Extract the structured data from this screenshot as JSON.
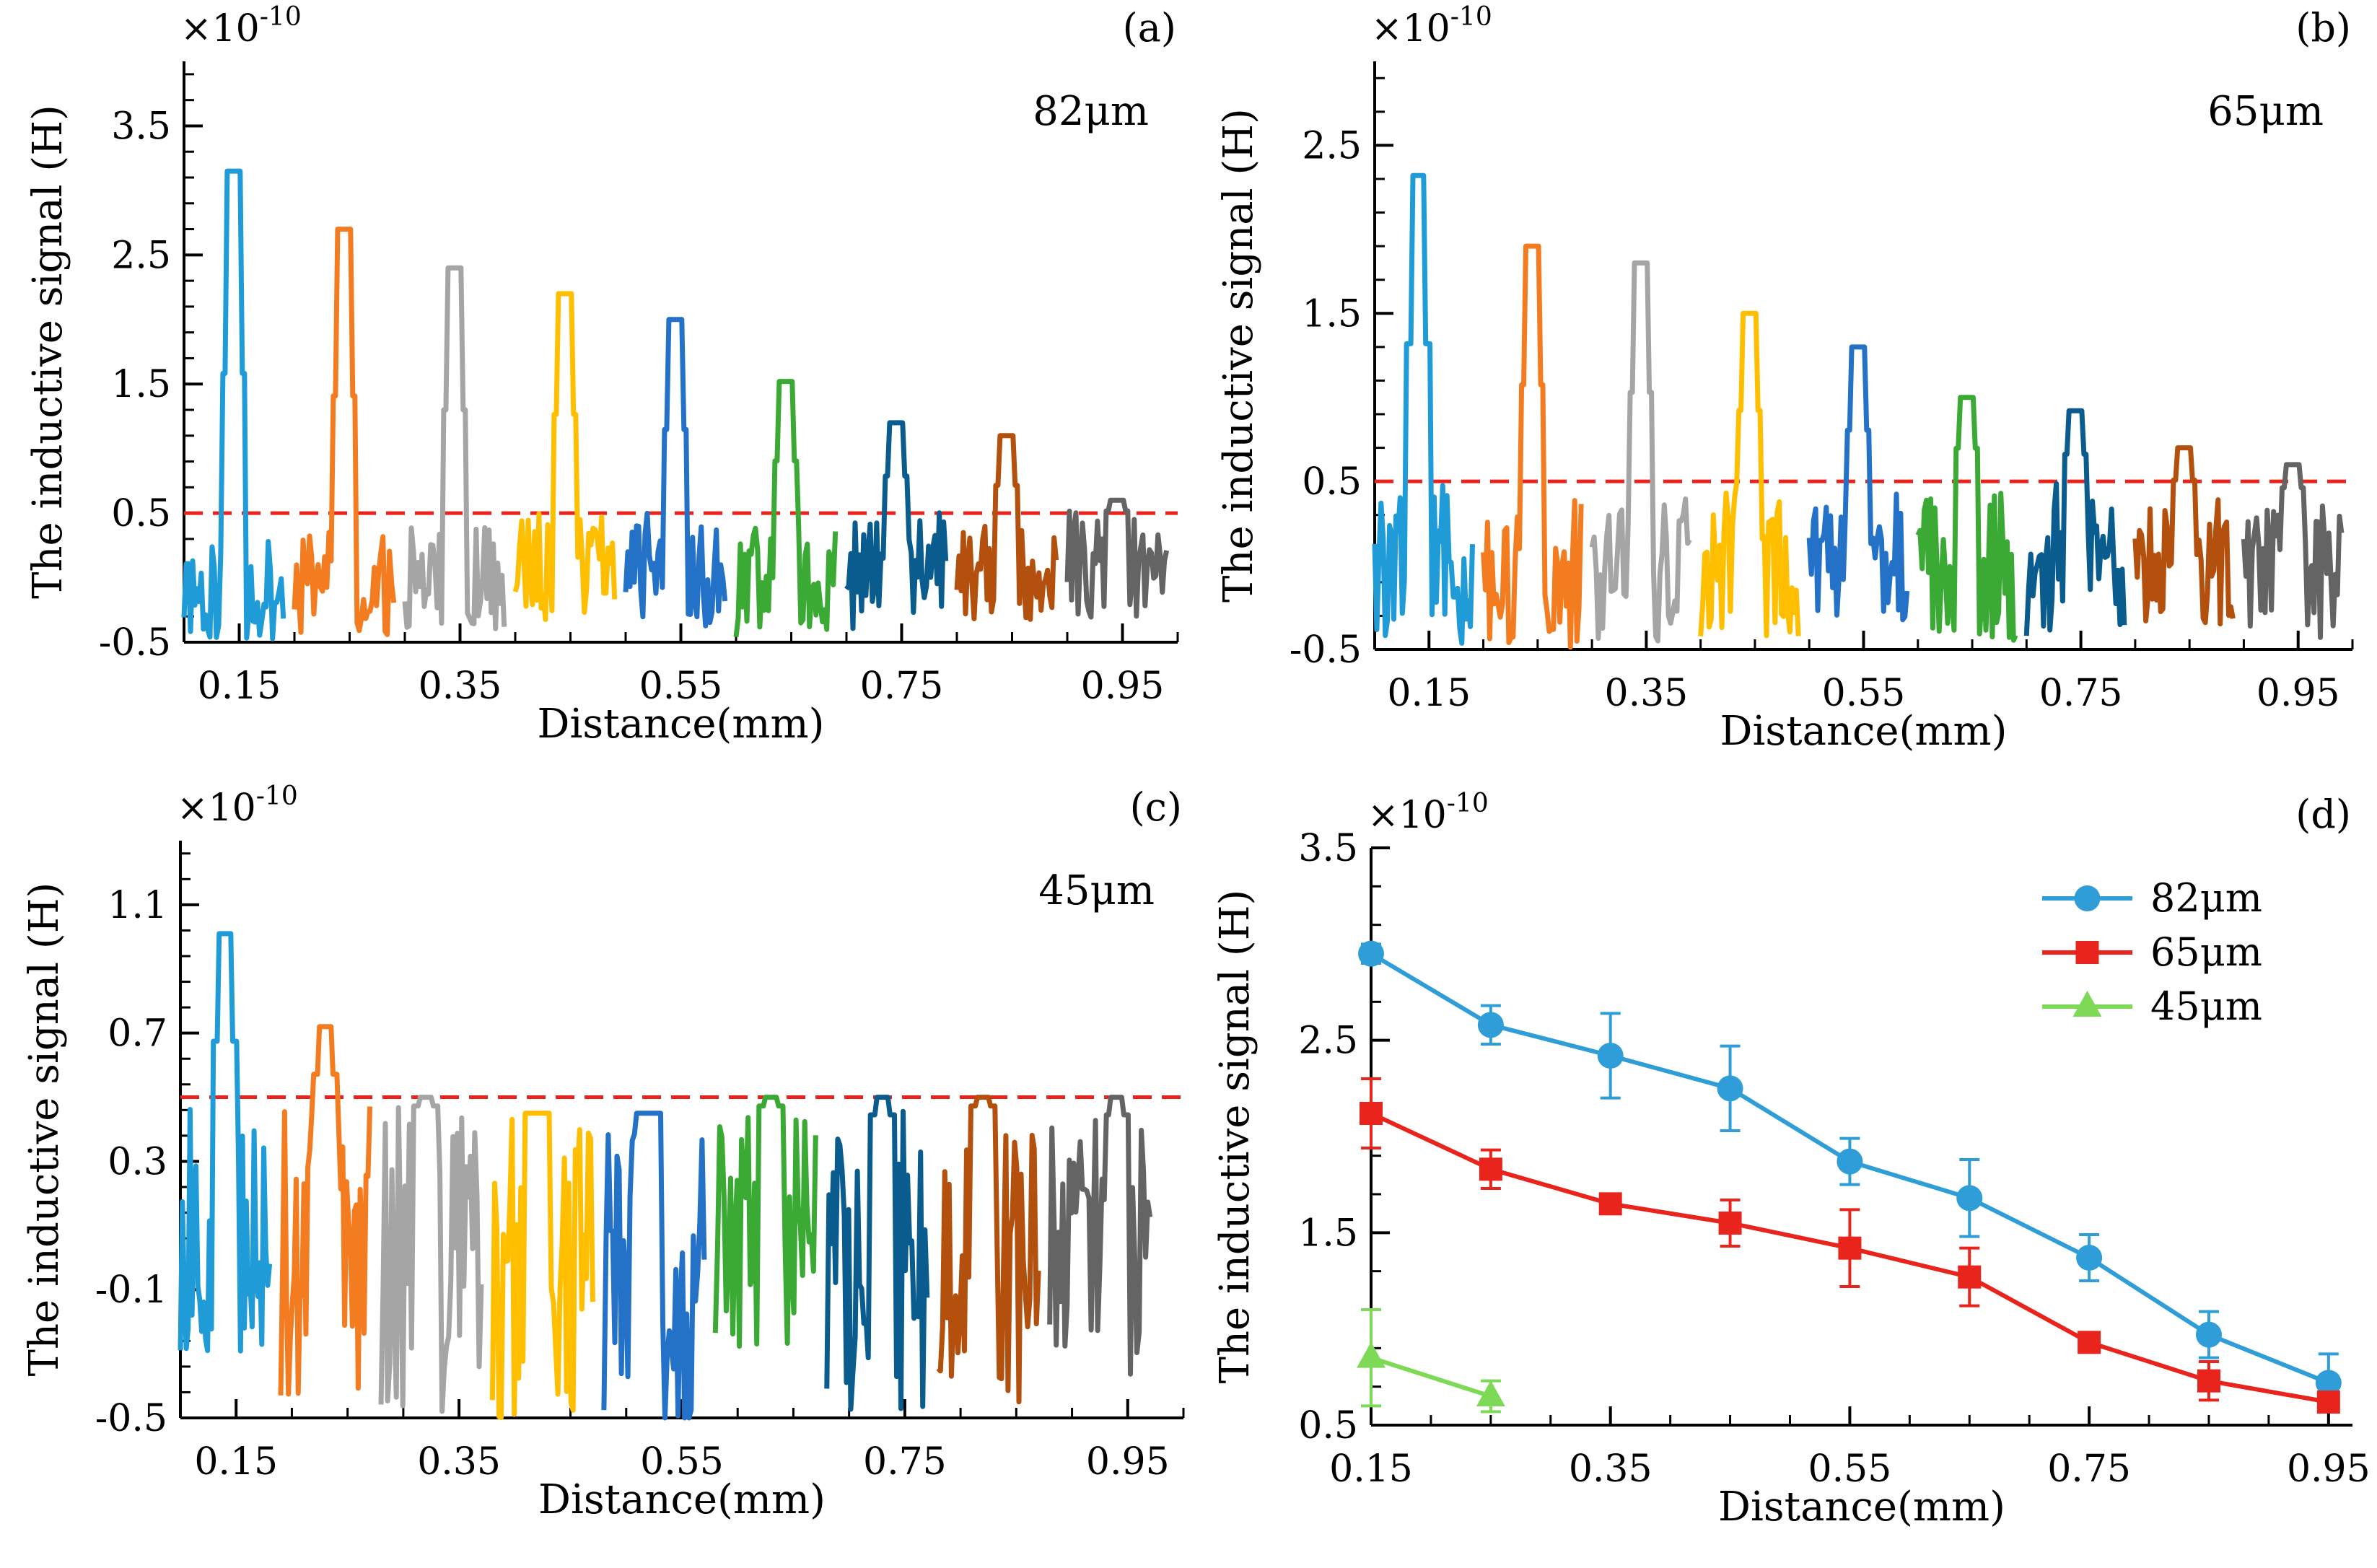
{
  "chart_data": [
    {
      "panel": "(a)",
      "type": "line",
      "annotation": "82μm",
      "multiplier": "×10",
      "multiplier_exp": "-10",
      "xlabel": "Distance(mm)",
      "ylabel": "The inductive signal (H)",
      "xlim": [
        0.1,
        1.0
      ],
      "ylim": [
        -0.5,
        4.0
      ],
      "xticks": [
        "0.15",
        "0.35",
        "0.55",
        "0.75",
        "0.95"
      ],
      "yticks": [
        "-0.5",
        "0.5",
        "1.5",
        "2.5",
        "3.5"
      ],
      "threshold": 0.5,
      "threshold_color": "#e8241c",
      "series": [
        {
          "name": "0.15",
          "color": "#1f9bd7",
          "start": 0.1,
          "end": 0.19,
          "peak_x": 0.145,
          "peak": 3.15,
          "low": -0.5,
          "high": 0.3
        },
        {
          "name": "0.25",
          "color": "#f47c20",
          "start": 0.2,
          "end": 0.29,
          "peak_x": 0.245,
          "peak": 2.7,
          "low": -0.45,
          "high": 0.35
        },
        {
          "name": "0.35",
          "color": "#a5a5a5",
          "start": 0.3,
          "end": 0.39,
          "peak_x": 0.345,
          "peak": 2.4,
          "low": -0.4,
          "high": 0.4
        },
        {
          "name": "0.45",
          "color": "#ffbf00",
          "start": 0.4,
          "end": 0.49,
          "peak_x": 0.445,
          "peak": 2.2,
          "low": -0.35,
          "high": 0.5
        },
        {
          "name": "0.55",
          "color": "#2472c8",
          "start": 0.5,
          "end": 0.59,
          "peak_x": 0.545,
          "peak": 2.0,
          "low": -0.35,
          "high": 0.45
        },
        {
          "name": "0.65",
          "color": "#3aaa35",
          "start": 0.6,
          "end": 0.69,
          "peak_x": 0.645,
          "peak": 1.52,
          "low": -0.4,
          "high": 0.4
        },
        {
          "name": "0.75",
          "color": "#0a5c8e",
          "start": 0.7,
          "end": 0.79,
          "peak_x": 0.745,
          "peak": 1.2,
          "low": -0.35,
          "high": 0.45
        },
        {
          "name": "0.85",
          "color": "#b4500e",
          "start": 0.8,
          "end": 0.89,
          "peak_x": 0.845,
          "peak": 1.1,
          "low": -0.35,
          "high": 0.4
        },
        {
          "name": "0.95",
          "color": "#646464",
          "start": 0.9,
          "end": 0.99,
          "peak_x": 0.945,
          "peak": 0.6,
          "low": -0.3,
          "high": 0.45
        }
      ]
    },
    {
      "panel": "(b)",
      "type": "line",
      "annotation": "65μm",
      "multiplier": "×10",
      "multiplier_exp": "-10",
      "xlabel": "Distance(mm)",
      "ylabel": "The inductive signal (H)",
      "xlim": [
        0.1,
        1.0
      ],
      "ylim": [
        -0.5,
        3.0
      ],
      "xticks": [
        "0.15",
        "0.35",
        "0.55",
        "0.75",
        "0.95"
      ],
      "yticks": [
        "-0.5",
        "0.5",
        "1.5",
        "2.5"
      ],
      "threshold": 0.5,
      "threshold_color": "#e8241c",
      "series": [
        {
          "name": "0.15",
          "color": "#1f9bd7",
          "start": 0.1,
          "end": 0.19,
          "peak_x": 0.14,
          "peak": 2.32,
          "low": -0.5,
          "high": 0.5
        },
        {
          "name": "0.25",
          "color": "#f47c20",
          "start": 0.2,
          "end": 0.29,
          "peak_x": 0.245,
          "peak": 1.9,
          "low": -0.5,
          "high": 0.4
        },
        {
          "name": "0.35",
          "color": "#a5a5a5",
          "start": 0.3,
          "end": 0.39,
          "peak_x": 0.345,
          "peak": 1.8,
          "low": -0.45,
          "high": 0.4
        },
        {
          "name": "0.45",
          "color": "#ffbf00",
          "start": 0.4,
          "end": 0.49,
          "peak_x": 0.445,
          "peak": 1.5,
          "low": -0.4,
          "high": 0.45
        },
        {
          "name": "0.55",
          "color": "#2472c8",
          "start": 0.5,
          "end": 0.59,
          "peak_x": 0.545,
          "peak": 1.3,
          "low": -0.35,
          "high": 0.4
        },
        {
          "name": "0.65",
          "color": "#3aaa35",
          "start": 0.6,
          "end": 0.69,
          "peak_x": 0.645,
          "peak": 1.0,
          "low": -0.45,
          "high": 0.45
        },
        {
          "name": "0.75",
          "color": "#0a5c8e",
          "start": 0.7,
          "end": 0.79,
          "peak_x": 0.745,
          "peak": 0.92,
          "low": -0.4,
          "high": 0.45
        },
        {
          "name": "0.85",
          "color": "#b4500e",
          "start": 0.8,
          "end": 0.89,
          "peak_x": 0.845,
          "peak": 0.7,
          "low": -0.35,
          "high": 0.35
        },
        {
          "name": "0.95",
          "color": "#646464",
          "start": 0.9,
          "end": 0.99,
          "peak_x": 0.945,
          "peak": 0.6,
          "low": -0.4,
          "high": 0.35
        }
      ]
    },
    {
      "panel": "(c)",
      "type": "line",
      "annotation": "45μm",
      "multiplier": "×10",
      "multiplier_exp": "-10",
      "xlabel": "Distance(mm)",
      "ylabel": "The inductive signal (H)",
      "xlim": [
        0.1,
        1.0
      ],
      "ylim": [
        -0.5,
        1.3
      ],
      "xticks": [
        "0.15",
        "0.35",
        "0.55",
        "0.75",
        "0.95"
      ],
      "yticks": [
        "-0.5",
        "-0.1",
        "0.3",
        "0.7",
        "1.1"
      ],
      "threshold": 0.5,
      "threshold_color": "#e8241c",
      "series": [
        {
          "name": "0.15",
          "color": "#1f9bd7",
          "start": 0.1,
          "end": 0.18,
          "peak_x": 0.14,
          "peak": 1.01,
          "low": -0.3,
          "high": 0.4
        },
        {
          "name": "0.25",
          "color": "#f47c20",
          "start": 0.19,
          "end": 0.27,
          "peak_x": 0.23,
          "peak": 0.72,
          "low": -0.45,
          "high": 0.45
        },
        {
          "name": "0.35",
          "color": "#a5a5a5",
          "start": 0.28,
          "end": 0.37,
          "peak_x": 0.32,
          "peak": 0.5,
          "low": -0.5,
          "high": 0.45
        },
        {
          "name": "0.45",
          "color": "#ffbf00",
          "start": 0.38,
          "end": 0.47,
          "peak_x": 0.42,
          "peak": 0.45,
          "low": -0.5,
          "high": 0.45
        },
        {
          "name": "0.55",
          "color": "#2472c8",
          "start": 0.48,
          "end": 0.57,
          "peak_x": 0.52,
          "peak": 0.45,
          "low": -0.5,
          "high": 0.45
        },
        {
          "name": "0.65",
          "color": "#3aaa35",
          "start": 0.58,
          "end": 0.67,
          "peak_x": 0.63,
          "peak": 0.5,
          "low": -0.3,
          "high": 0.45
        },
        {
          "name": "0.75",
          "color": "#0a5c8e",
          "start": 0.68,
          "end": 0.77,
          "peak_x": 0.73,
          "peak": 0.5,
          "low": -0.5,
          "high": 0.4
        },
        {
          "name": "0.85",
          "color": "#b4500e",
          "start": 0.78,
          "end": 0.87,
          "peak_x": 0.82,
          "peak": 0.5,
          "low": -0.45,
          "high": 0.45
        },
        {
          "name": "0.95",
          "color": "#646464",
          "start": 0.88,
          "end": 0.97,
          "peak_x": 0.94,
          "peak": 0.5,
          "low": -0.3,
          "high": 0.4
        }
      ]
    },
    {
      "panel": "(d)",
      "type": "line",
      "multiplier": "×10",
      "multiplier_exp": "-10",
      "xlabel": "Distance(mm)",
      "ylabel": "The inductive signal (H)",
      "xlim": [
        0.15,
        0.97
      ],
      "ylim": [
        0.5,
        3.5
      ],
      "xticks": [
        "0.15",
        "0.35",
        "0.55",
        "0.75",
        "0.95"
      ],
      "yticks": [
        "0.5",
        "1.5",
        "2.5",
        "3.5"
      ],
      "legend_position": "top-right",
      "series": [
        {
          "name": "82μm",
          "color": "#2f9ed8",
          "marker": "circle",
          "x": [
            0.15,
            0.25,
            0.35,
            0.45,
            0.55,
            0.65,
            0.75,
            0.85,
            0.95
          ],
          "y": [
            2.95,
            2.58,
            2.42,
            2.25,
            1.87,
            1.68,
            1.37,
            0.97,
            0.72
          ],
          "err": [
            0.05,
            0.1,
            0.22,
            0.22,
            0.12,
            0.2,
            0.12,
            0.12,
            0.15
          ]
        },
        {
          "name": "65μm",
          "color": "#e8241c",
          "marker": "square",
          "x": [
            0.15,
            0.25,
            0.35,
            0.45,
            0.55,
            0.65,
            0.75,
            0.85,
            0.95
          ],
          "y": [
            2.12,
            1.83,
            1.65,
            1.55,
            1.42,
            1.27,
            0.93,
            0.73,
            0.62
          ],
          "err": [
            0.18,
            0.1,
            0.05,
            0.12,
            0.2,
            0.15,
            0.05,
            0.1,
            0.05
          ]
        },
        {
          "name": "45μm",
          "color": "#7ed957",
          "marker": "triangle",
          "x": [
            0.15,
            0.25
          ],
          "y": [
            0.85,
            0.65
          ],
          "err": [
            0.25,
            0.08
          ]
        }
      ]
    }
  ]
}
